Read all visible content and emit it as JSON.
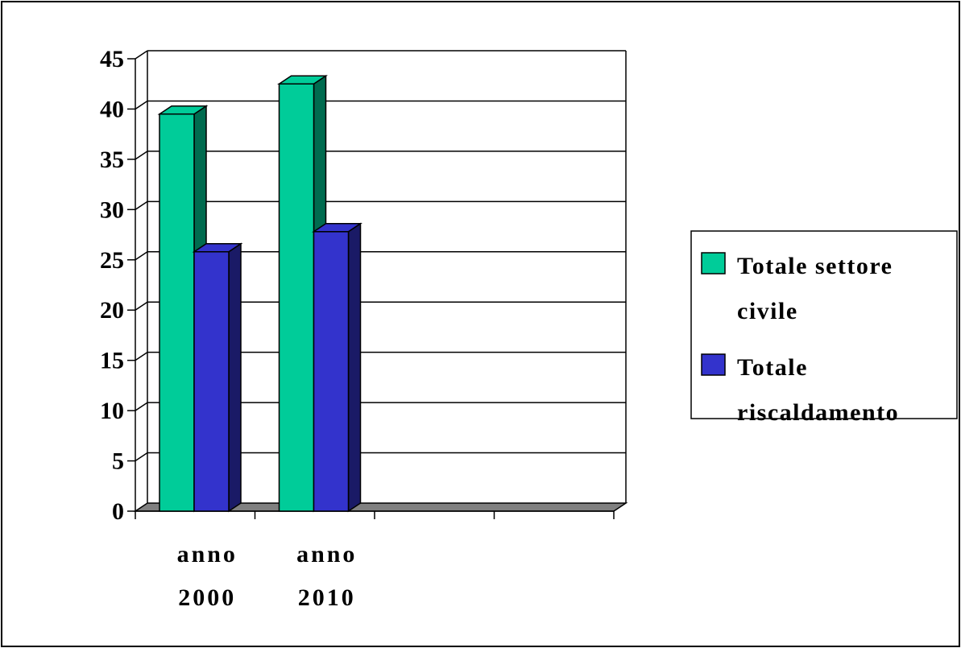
{
  "chart_data": {
    "type": "bar",
    "categories": [
      [
        "anno",
        "2000"
      ],
      [
        "anno",
        "2010"
      ],
      [
        "",
        ""
      ],
      [
        "",
        ""
      ]
    ],
    "series": [
      {
        "name": [
          "Totale settore",
          "civile"
        ],
        "values": [
          39.5,
          42.5,
          null,
          null
        ],
        "color": "#00CC99",
        "side_color": "#006B4F"
      },
      {
        "name": [
          "Totale",
          "riscaldamento"
        ],
        "values": [
          25.8,
          27.8,
          null,
          null
        ],
        "color": "#3333CC",
        "side_color": "#1A1A66"
      }
    ],
    "ylim": [
      0,
      45
    ],
    "yticks": [
      0,
      5,
      10,
      15,
      20,
      25,
      30,
      35,
      40,
      45
    ],
    "grid": true,
    "legend_position": "right",
    "floor_color": "#808080"
  }
}
